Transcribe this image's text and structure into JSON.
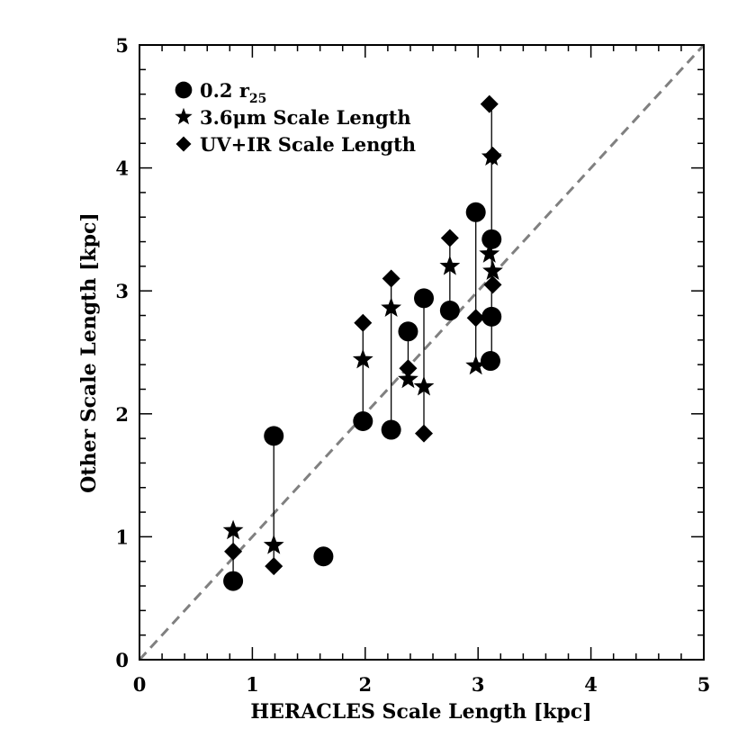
{
  "chart_data": {
    "type": "scatter",
    "xlabel": "HERACLES Scale Length [kpc]",
    "ylabel": "Other Scale Length [kpc]",
    "xlim": [
      0,
      5
    ],
    "ylim": [
      0,
      5
    ],
    "x_ticks": [
      "0",
      "1",
      "2",
      "3",
      "4",
      "5"
    ],
    "y_ticks": [
      "0",
      "1",
      "2",
      "3",
      "4",
      "5"
    ],
    "grid": false,
    "legend_position": "top-left",
    "reference_line": {
      "style": "dashed",
      "color": "#808080",
      "from": [
        0,
        0
      ],
      "to": [
        5,
        5
      ]
    },
    "series": [
      {
        "name": "0.2 r",
        "name_subscript": "25",
        "marker": "circle",
        "points": [
          [
            0.83,
            0.64
          ],
          [
            1.19,
            1.82
          ],
          [
            1.63,
            0.84
          ],
          [
            1.98,
            1.94
          ],
          [
            2.23,
            1.87
          ],
          [
            2.38,
            2.67
          ],
          [
            2.52,
            2.94
          ],
          [
            2.75,
            2.84
          ],
          [
            2.98,
            3.64
          ],
          [
            3.12,
            3.42
          ],
          [
            3.12,
            2.79
          ],
          [
            3.11,
            2.43
          ]
        ]
      },
      {
        "name": "3.6μm Scale Length",
        "marker": "star",
        "points": [
          [
            0.83,
            1.05
          ],
          [
            1.19,
            0.93
          ],
          [
            1.98,
            2.44
          ],
          [
            2.23,
            2.86
          ],
          [
            2.38,
            2.28
          ],
          [
            2.52,
            2.22
          ],
          [
            2.75,
            3.2
          ],
          [
            2.98,
            2.39
          ],
          [
            3.1,
            3.3
          ],
          [
            3.12,
            4.09
          ],
          [
            3.13,
            3.16
          ]
        ]
      },
      {
        "name": "UV+IR Scale Length",
        "marker": "diamond",
        "points": [
          [
            0.83,
            0.88
          ],
          [
            1.19,
            0.76
          ],
          [
            1.98,
            2.74
          ],
          [
            2.23,
            3.1
          ],
          [
            2.38,
            2.37
          ],
          [
            2.52,
            1.84
          ],
          [
            2.75,
            3.43
          ],
          [
            2.98,
            2.78
          ],
          [
            3.1,
            4.52
          ],
          [
            3.13,
            4.1
          ],
          [
            3.13,
            3.05
          ]
        ]
      }
    ],
    "connectors": [
      {
        "x": 0.83,
        "y_range": [
          0.64,
          1.05
        ]
      },
      {
        "x": 1.19,
        "y_range": [
          0.76,
          1.82
        ]
      },
      {
        "x": 1.98,
        "y_range": [
          1.94,
          2.74
        ]
      },
      {
        "x": 2.23,
        "y_range": [
          1.87,
          3.1
        ]
      },
      {
        "x": 2.38,
        "y_range": [
          2.28,
          2.67
        ]
      },
      {
        "x": 2.52,
        "y_range": [
          1.84,
          2.94
        ]
      },
      {
        "x": 2.75,
        "y_range": [
          2.84,
          3.43
        ]
      },
      {
        "x": 2.98,
        "y_range": [
          2.39,
          3.64
        ]
      },
      {
        "x": 3.12,
        "y_range": [
          2.43,
          4.52
        ]
      }
    ]
  }
}
